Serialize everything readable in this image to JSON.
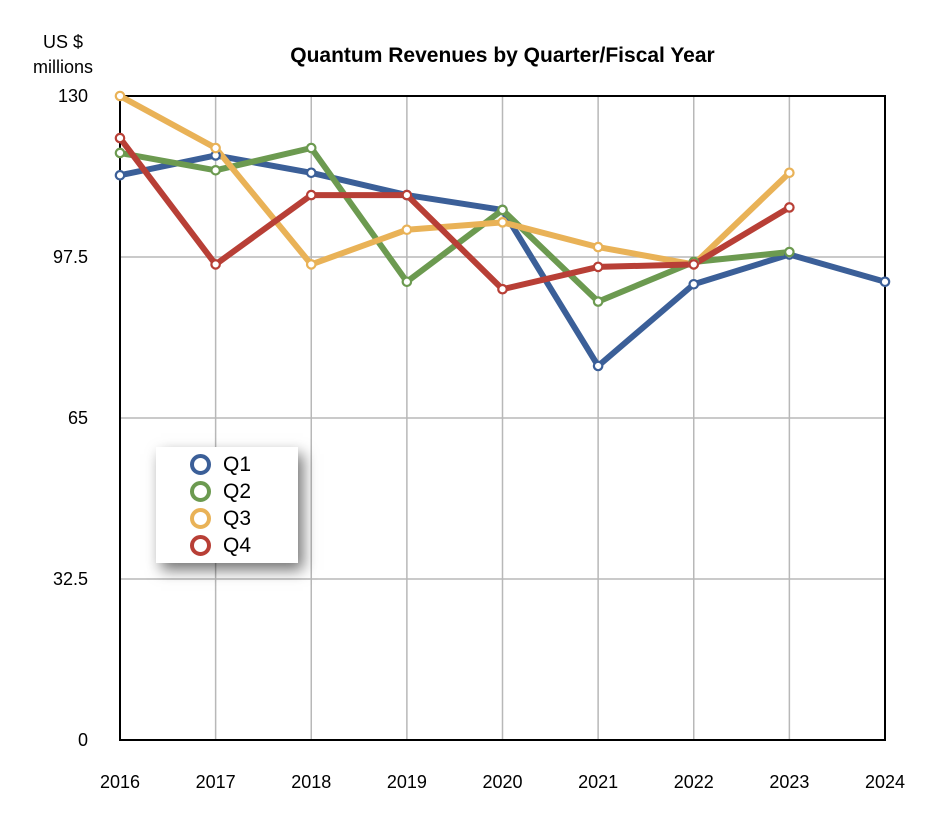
{
  "chart_data": {
    "type": "line",
    "title": "Quantum Revenues by Quarter/Fiscal Year",
    "ylabel_lines": [
      "US $",
      "millions"
    ],
    "xlabel": "",
    "categories": [
      "2016",
      "2017",
      "2018",
      "2019",
      "2020",
      "2021",
      "2022",
      "2023",
      "2024"
    ],
    "ylim": [
      0,
      130
    ],
    "yticks": [
      0,
      32.5,
      65,
      97.5,
      130
    ],
    "ytick_labels": [
      "0",
      "32.5",
      "65",
      "97.5",
      "130"
    ],
    "grid": true,
    "legend_position": "center-left",
    "series": [
      {
        "name": "Q1",
        "color": "#3b5f98",
        "values": [
          114,
          118,
          114.5,
          110,
          107,
          75.5,
          92,
          98,
          92.5
        ]
      },
      {
        "name": "Q2",
        "color": "#6c9a50",
        "values": [
          118.5,
          115,
          119.5,
          92.5,
          107,
          88.5,
          96.5,
          98.5,
          null
        ]
      },
      {
        "name": "Q3",
        "color": "#e9b257",
        "values": [
          130,
          119.5,
          96,
          103,
          104.5,
          99.5,
          96,
          114.5,
          null
        ]
      },
      {
        "name": "Q4",
        "color": "#b83f36",
        "values": [
          121.5,
          96,
          110,
          110,
          91,
          95.5,
          96,
          107.5,
          null
        ]
      }
    ]
  }
}
